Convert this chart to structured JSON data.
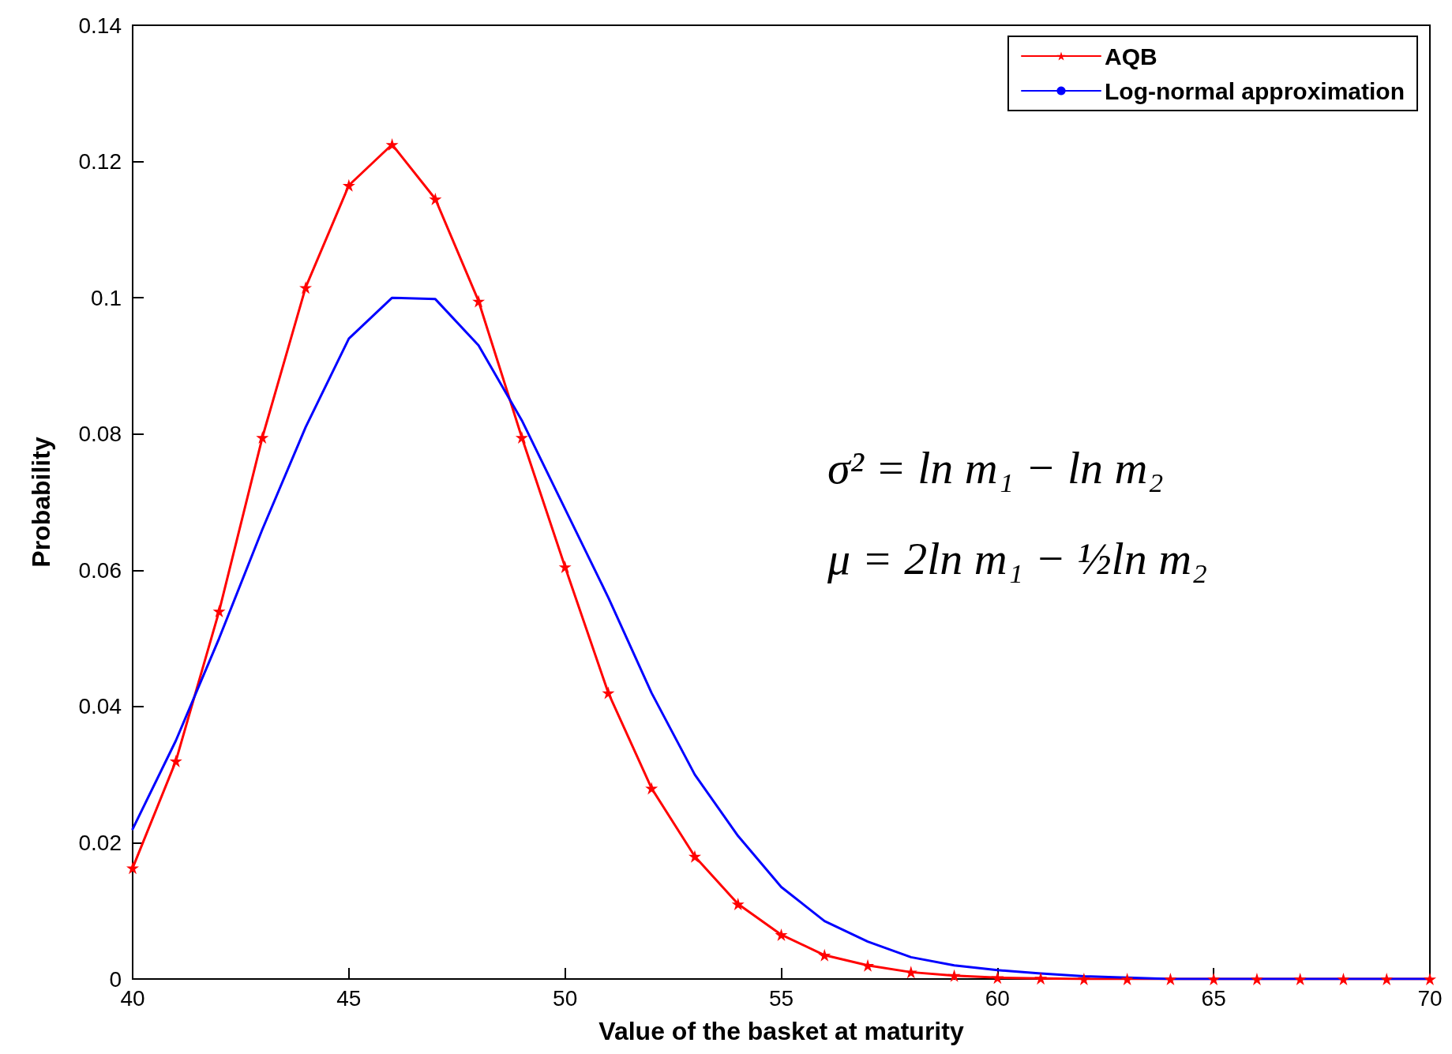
{
  "chart_data": {
    "type": "line",
    "xlabel": "Value of the basket at maturity",
    "ylabel": "Probability",
    "x": [
      40,
      41,
      42,
      43,
      44,
      45,
      46,
      47,
      48,
      49,
      50,
      51,
      52,
      53,
      54,
      55,
      56,
      57,
      58,
      59,
      60,
      61,
      62,
      63,
      64,
      65,
      66,
      67,
      68,
      69,
      70
    ],
    "series": [
      {
        "name": "AQB",
        "color": "#ff0000",
        "marker": "star",
        "values": [
          0.0163,
          0.032,
          0.054,
          0.0795,
          0.1015,
          0.1165,
          0.1225,
          0.1145,
          0.0995,
          0.0795,
          0.0605,
          0.042,
          0.028,
          0.018,
          0.011,
          0.0065,
          0.0035,
          0.002,
          0.001,
          0.0005,
          0.0002,
          0.0001,
          0,
          0,
          0,
          0,
          0,
          0,
          0,
          0,
          0
        ]
      },
      {
        "name": "Log-normal approximation",
        "color": "#0000ff",
        "marker": "none",
        "values": [
          0.022,
          0.035,
          0.05,
          0.066,
          0.081,
          0.094,
          0.1,
          0.0998,
          0.093,
          0.082,
          0.069,
          0.056,
          0.042,
          0.03,
          0.021,
          0.0135,
          0.0085,
          0.0055,
          0.0032,
          0.002,
          0.0013,
          0.0008,
          0.0004,
          0.0002,
          0,
          0,
          0,
          0,
          0,
          0,
          0
        ]
      }
    ],
    "xlim": [
      40,
      70
    ],
    "xticks": [
      40,
      45,
      50,
      55,
      60,
      65,
      70
    ],
    "ylim": [
      0,
      0.14
    ],
    "yticks": [
      0,
      0.02,
      0.04,
      0.06,
      0.08,
      0.1,
      0.12,
      0.14
    ],
    "legend": "top right",
    "annotations": [
      "σ² = ln m₁ − ln m₂",
      "μ = 2ln m₁ − ½ln m₂"
    ]
  }
}
